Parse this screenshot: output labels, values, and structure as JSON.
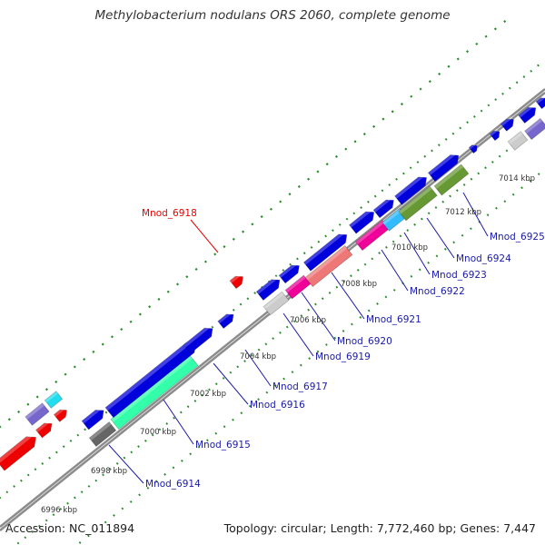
{
  "title": "Methylobacterium nodulans ORS 2060, complete genome",
  "footer": {
    "accession": "Accession: NC_011894",
    "summary": "Topology: circular; Length: 7,772,460 bp; Genes: 7,447"
  },
  "colors": {
    "backbone": "#8c8c8c",
    "tick": "#2e8b2e",
    "gene_label": "#1a1aa8",
    "highlight_label": "#e60000",
    "forward_gene": "#0000dd"
  },
  "kbp_ticks": [
    "6996 kbp",
    "6998 kbp",
    "7000 kbp",
    "7002 kbp",
    "7004 kbp",
    "7006 kbp",
    "7008 kbp",
    "7010 kbp",
    "7012 kbp",
    "7014 kbp"
  ],
  "gene_labels": [
    {
      "name": "Mnod_6914"
    },
    {
      "name": "Mnod_6915"
    },
    {
      "name": "Mnod_6916"
    },
    {
      "name": "Mnod_6917"
    },
    {
      "name": "Mnod_6918",
      "highlight": true
    },
    {
      "name": "Mnod_6919"
    },
    {
      "name": "Mnod_6920"
    },
    {
      "name": "Mnod_6921"
    },
    {
      "name": "Mnod_6922"
    },
    {
      "name": "Mnod_6923"
    },
    {
      "name": "Mnod_6924"
    },
    {
      "name": "Mnod_6925"
    }
  ]
}
